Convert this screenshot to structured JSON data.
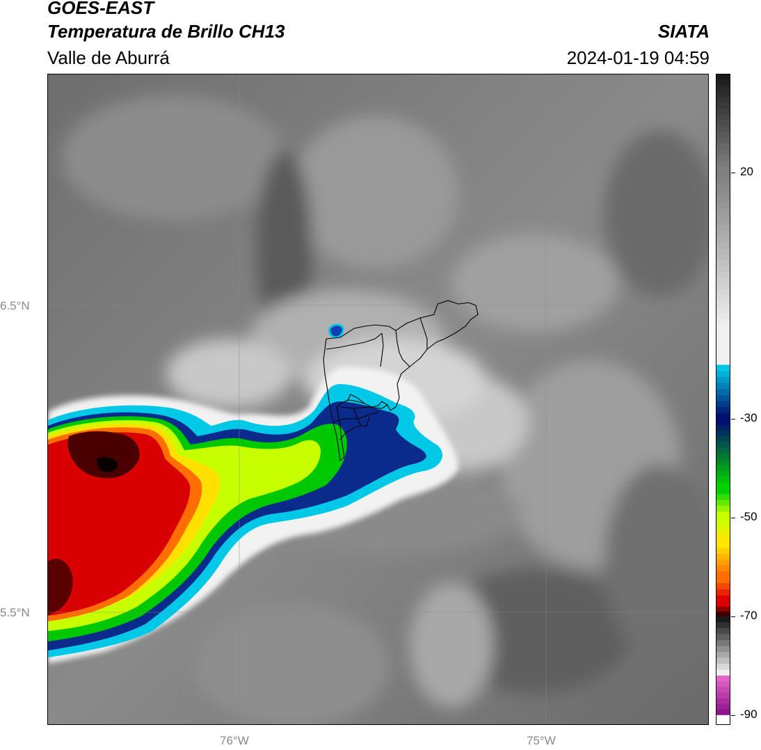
{
  "header": {
    "satellite": "GOES-EAST",
    "product": "Temperatura de Brillo CH13",
    "region": "Valle de Aburrá",
    "agency": "SIATA",
    "datetime": "2024-01-19 04:59"
  },
  "map": {
    "lat_labels": [
      "6.5°N",
      "5.5°N"
    ],
    "lon_labels": [
      "76°W",
      "75°W"
    ]
  },
  "colorbar": {
    "tick_labels": [
      "20",
      "-30",
      "-50",
      "-70",
      "-90"
    ],
    "tick_values": [
      20,
      -30,
      -50,
      -70,
      -90
    ],
    "range": [
      -92,
      40
    ],
    "colors": {
      "warm": "#1a1a1a",
      "mid_gray": "#808080",
      "light": "#f0f0f0",
      "cyan": "#00c8e6",
      "dark_blue": "#00106e",
      "green": "#00d200",
      "yellow_green": "#c8ff00",
      "yellow": "#ffe600",
      "orange": "#ff6e00",
      "red": "#dc0000",
      "dark_red": "#3c0000",
      "pink": "#e664c8",
      "purple": "#8c148c"
    }
  }
}
